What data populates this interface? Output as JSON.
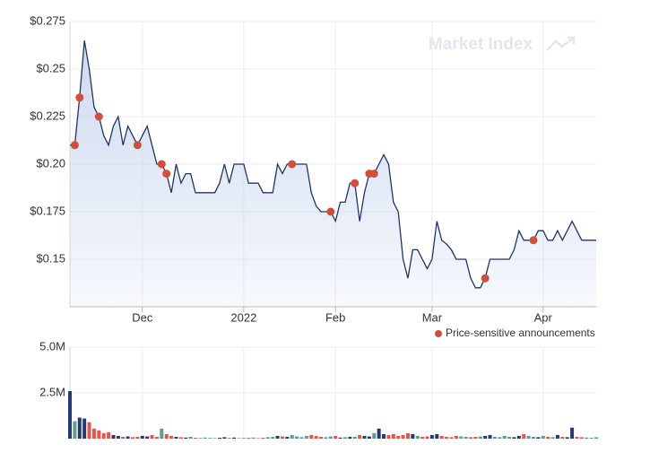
{
  "chart_data": [
    {
      "type": "line",
      "watermark": "Market Index",
      "color": "#1f3566",
      "area_color": "#c9d6ee",
      "categories": [
        null,
        null,
        null,
        null,
        null,
        null,
        null,
        null,
        null,
        null,
        null,
        null,
        null,
        null,
        null,
        "Dec",
        null,
        null,
        null,
        null,
        null,
        null,
        null,
        null,
        null,
        null,
        null,
        null,
        null,
        null,
        null,
        null,
        null,
        null,
        null,
        null,
        "2022",
        null,
        null,
        null,
        null,
        null,
        null,
        null,
        null,
        null,
        null,
        null,
        null,
        null,
        null,
        null,
        null,
        null,
        null,
        "Feb",
        null,
        null,
        null,
        null,
        null,
        null,
        null,
        null,
        null,
        null,
        null,
        null,
        null,
        null,
        null,
        null,
        null,
        null,
        null,
        "Mar",
        null,
        null,
        null,
        null,
        null,
        null,
        null,
        null,
        null,
        null,
        null,
        null,
        null,
        null,
        null,
        null,
        null,
        null,
        null,
        null,
        null,
        null,
        "Apr",
        null,
        null,
        null,
        null,
        null,
        null,
        null,
        null,
        null,
        null,
        null
      ],
      "values": [
        0.21,
        0.21,
        0.235,
        0.265,
        0.25,
        0.23,
        0.225,
        0.215,
        0.21,
        0.22,
        0.225,
        0.21,
        0.22,
        0.215,
        0.21,
        0.215,
        0.22,
        0.21,
        0.2,
        0.2,
        0.195,
        0.185,
        0.2,
        0.19,
        0.195,
        0.195,
        0.185,
        0.185,
        0.185,
        0.185,
        0.185,
        0.19,
        0.2,
        0.19,
        0.2,
        0.2,
        0.2,
        0.19,
        0.19,
        0.19,
        0.185,
        0.185,
        0.185,
        0.2,
        0.195,
        0.2,
        0.2,
        0.2,
        0.2,
        0.2,
        0.185,
        0.178,
        0.175,
        0.175,
        0.175,
        0.17,
        0.18,
        0.18,
        0.19,
        0.19,
        0.17,
        0.185,
        0.195,
        0.195,
        0.2,
        0.205,
        0.2,
        0.18,
        0.175,
        0.15,
        0.14,
        0.155,
        0.155,
        0.15,
        0.145,
        0.15,
        0.17,
        0.16,
        0.158,
        0.155,
        0.15,
        0.15,
        0.15,
        0.14,
        0.135,
        0.135,
        0.14,
        0.15,
        0.15,
        0.15,
        0.15,
        0.15,
        0.155,
        0.165,
        0.16,
        0.16,
        0.16,
        0.165,
        0.165,
        0.16,
        0.16,
        0.165,
        0.16,
        0.165,
        0.17,
        0.165,
        0.16,
        0.16,
        0.16,
        0.16
      ],
      "announcements": {
        "name": "Price-sensitive announcements",
        "color": "#cf4f3a",
        "values": [
          null,
          0.21,
          0.235,
          null,
          null,
          null,
          0.225,
          null,
          null,
          null,
          null,
          null,
          null,
          null,
          0.21,
          null,
          null,
          null,
          null,
          0.2,
          0.195,
          null,
          null,
          null,
          null,
          null,
          null,
          null,
          null,
          null,
          null,
          null,
          null,
          null,
          null,
          null,
          null,
          null,
          null,
          null,
          null,
          null,
          null,
          null,
          null,
          null,
          0.2,
          null,
          null,
          null,
          null,
          null,
          null,
          null,
          0.175,
          null,
          null,
          null,
          null,
          0.19,
          null,
          null,
          0.195,
          0.195,
          null,
          null,
          null,
          null,
          null,
          null,
          null,
          null,
          null,
          null,
          null,
          null,
          null,
          null,
          null,
          null,
          null,
          null,
          null,
          null,
          null,
          null,
          0.14,
          null,
          null,
          null,
          null,
          null,
          null,
          null,
          null,
          null,
          0.16,
          null,
          null,
          null,
          null,
          null,
          null,
          null,
          null,
          null,
          null,
          null,
          null,
          null
        ]
      },
      "ylim": [
        0.125,
        0.275
      ],
      "yticks": [
        {
          "value": 0.15,
          "label": "$0.15"
        },
        {
          "value": 0.175,
          "label": "$0.175"
        },
        {
          "value": 0.2,
          "label": "$0.20"
        },
        {
          "value": 0.225,
          "label": "$0.225"
        },
        {
          "value": 0.25,
          "label": "$0.25"
        },
        {
          "value": 0.275,
          "label": "$0.275"
        }
      ],
      "grid": true
    },
    {
      "type": "bar",
      "colors": {
        "up": "#233b6e",
        "down": "#e0584c",
        "flat": "#5a9e8f"
      },
      "values": [
        2600000,
        950000,
        1150000,
        1100000,
        900000,
        550000,
        450000,
        300000,
        350000,
        200000,
        150000,
        100000,
        120000,
        80000,
        100000,
        150000,
        120000,
        200000,
        100000,
        550000,
        250000,
        150000,
        100000,
        80000,
        60000,
        100000,
        50000,
        40000,
        60000,
        40000,
        30000,
        50000,
        80000,
        40000,
        60000,
        30000,
        40000,
        50000,
        60000,
        30000,
        50000,
        80000,
        100000,
        150000,
        120000,
        100000,
        200000,
        120000,
        80000,
        150000,
        200000,
        150000,
        100000,
        80000,
        120000,
        150000,
        60000,
        80000,
        100000,
        100000,
        200000,
        150000,
        120000,
        300000,
        550000,
        250000,
        200000,
        250000,
        150000,
        200000,
        300000,
        250000,
        150000,
        100000,
        120000,
        200000,
        250000,
        150000,
        100000,
        80000,
        150000,
        120000,
        100000,
        80000,
        100000,
        120000,
        150000,
        200000,
        100000,
        80000,
        150000,
        100000,
        80000,
        150000,
        250000,
        150000,
        100000,
        80000,
        150000,
        100000,
        80000,
        200000,
        100000,
        80000,
        600000,
        100000,
        80000,
        60000,
        50000,
        80000
      ],
      "ylim": [
        0,
        5000000
      ],
      "yticks": [
        {
          "value": 2500000,
          "label": "2.5M"
        },
        {
          "value": 5000000,
          "label": "5.0M"
        }
      ]
    }
  ]
}
